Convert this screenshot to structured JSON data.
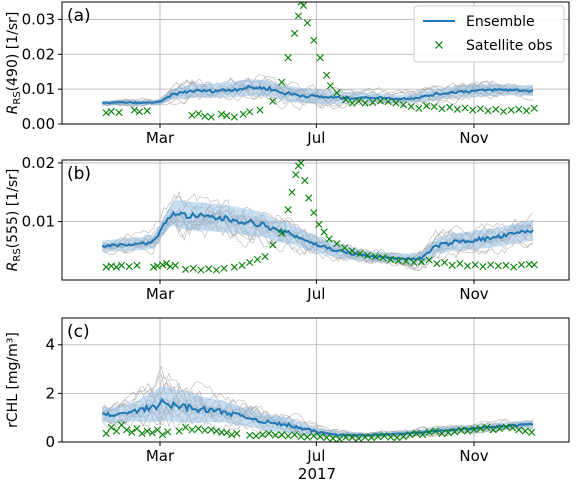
{
  "chart_data": [
    {
      "type": "line",
      "panel_label": "(a)",
      "ylabel_main": "R",
      "ylabel_sub": "RS",
      "ylabel_rest": "(490) [1/sr]",
      "ylim": [
        0,
        0.035
      ],
      "yticks": [
        0.0,
        0.01,
        0.02,
        0.03
      ],
      "ytick_labels": [
        "0.00",
        "0.01",
        "0.02",
        "0.03"
      ],
      "xtick_labels": [
        "Mar",
        "Jul",
        "Nov"
      ],
      "grid": true,
      "legend": "top-right",
      "ensemble_mean": [
        [
          15,
          0.006
        ],
        [
          30,
          0.0062
        ],
        [
          45,
          0.006
        ],
        [
          60,
          0.0063
        ],
        [
          70,
          0.0085
        ],
        [
          85,
          0.0095
        ],
        [
          100,
          0.0095
        ],
        [
          115,
          0.0098
        ],
        [
          130,
          0.0105
        ],
        [
          145,
          0.0102
        ],
        [
          155,
          0.009
        ],
        [
          170,
          0.0082
        ],
        [
          185,
          0.0078
        ],
        [
          200,
          0.0075
        ],
        [
          215,
          0.0075
        ],
        [
          230,
          0.0076
        ],
        [
          245,
          0.0072
        ],
        [
          260,
          0.0075
        ],
        [
          275,
          0.0085
        ],
        [
          290,
          0.0092
        ],
        [
          305,
          0.0095
        ],
        [
          320,
          0.0098
        ],
        [
          335,
          0.0098
        ],
        [
          350,
          0.0095
        ]
      ],
      "ensemble_spread": [
        [
          15,
          0.0008
        ],
        [
          60,
          0.001
        ],
        [
          75,
          0.0022
        ],
        [
          100,
          0.0025
        ],
        [
          130,
          0.003
        ],
        [
          160,
          0.0028
        ],
        [
          190,
          0.0025
        ],
        [
          220,
          0.0015
        ],
        [
          250,
          0.0015
        ],
        [
          280,
          0.002
        ],
        [
          310,
          0.0022
        ],
        [
          350,
          0.0018
        ]
      ],
      "satellite_obs": [
        [
          18,
          0.0032
        ],
        [
          22,
          0.0036
        ],
        [
          28,
          0.0033
        ],
        [
          40,
          0.004
        ],
        [
          44,
          0.0035
        ],
        [
          50,
          0.0038
        ],
        [
          85,
          0.0025
        ],
        [
          90,
          0.003
        ],
        [
          95,
          0.0022
        ],
        [
          100,
          0.002
        ],
        [
          108,
          0.0028
        ],
        [
          112,
          0.0024
        ],
        [
          118,
          0.002
        ],
        [
          125,
          0.0028
        ],
        [
          130,
          0.0035
        ],
        [
          138,
          0.004
        ],
        [
          148,
          0.0065
        ],
        [
          155,
          0.012
        ],
        [
          160,
          0.019
        ],
        [
          165,
          0.026
        ],
        [
          168,
          0.031
        ],
        [
          170,
          0.035
        ],
        [
          172,
          0.034
        ],
        [
          175,
          0.029
        ],
        [
          180,
          0.024
        ],
        [
          185,
          0.019
        ],
        [
          190,
          0.014
        ],
        [
          193,
          0.011
        ],
        [
          198,
          0.009
        ],
        [
          205,
          0.007
        ],
        [
          210,
          0.006
        ],
        [
          215,
          0.0065
        ],
        [
          220,
          0.006
        ],
        [
          226,
          0.0062
        ],
        [
          232,
          0.0066
        ],
        [
          238,
          0.0064
        ],
        [
          244,
          0.006
        ],
        [
          250,
          0.0055
        ],
        [
          256,
          0.005
        ],
        [
          262,
          0.0045
        ],
        [
          268,
          0.0052
        ],
        [
          274,
          0.005
        ],
        [
          280,
          0.0044
        ],
        [
          286,
          0.0048
        ],
        [
          292,
          0.0042
        ],
        [
          298,
          0.0046
        ],
        [
          304,
          0.004
        ],
        [
          310,
          0.0044
        ],
        [
          316,
          0.0038
        ],
        [
          322,
          0.0042
        ],
        [
          328,
          0.0036
        ],
        [
          334,
          0.004
        ],
        [
          340,
          0.0042
        ],
        [
          346,
          0.0038
        ],
        [
          352,
          0.0045
        ]
      ]
    },
    {
      "type": "line",
      "panel_label": "(b)",
      "ylabel_main": "R",
      "ylabel_sub": "RS",
      "ylabel_rest": "(555) [1/sr]",
      "ylim": [
        0,
        0.0205
      ],
      "yticks": [
        0.01,
        0.02
      ],
      "ytick_labels": [
        "0.01",
        "0.02"
      ],
      "xtick_labels": [
        "Mar",
        "Jul",
        "Nov"
      ],
      "grid": true,
      "ensemble_mean": [
        [
          15,
          0.0058
        ],
        [
          30,
          0.006
        ],
        [
          45,
          0.0062
        ],
        [
          55,
          0.0065
        ],
        [
          62,
          0.009
        ],
        [
          70,
          0.0115
        ],
        [
          80,
          0.011
        ],
        [
          95,
          0.0108
        ],
        [
          110,
          0.0105
        ],
        [
          125,
          0.01
        ],
        [
          140,
          0.0095
        ],
        [
          150,
          0.0085
        ],
        [
          160,
          0.008
        ],
        [
          170,
          0.0072
        ],
        [
          180,
          0.0062
        ],
        [
          195,
          0.0052
        ],
        [
          210,
          0.0045
        ],
        [
          225,
          0.004
        ],
        [
          240,
          0.0038
        ],
        [
          255,
          0.0036
        ],
        [
          265,
          0.0038
        ],
        [
          275,
          0.0058
        ],
        [
          290,
          0.0065
        ],
        [
          305,
          0.0068
        ],
        [
          320,
          0.0072
        ],
        [
          335,
          0.0078
        ],
        [
          350,
          0.0085
        ]
      ],
      "ensemble_spread": [
        [
          15,
          0.0012
        ],
        [
          60,
          0.0015
        ],
        [
          75,
          0.003
        ],
        [
          100,
          0.003
        ],
        [
          130,
          0.0028
        ],
        [
          160,
          0.0022
        ],
        [
          190,
          0.0016
        ],
        [
          220,
          0.0012
        ],
        [
          250,
          0.001
        ],
        [
          280,
          0.0018
        ],
        [
          310,
          0.002
        ],
        [
          350,
          0.0022
        ]
      ],
      "satellite_obs": [
        [
          18,
          0.0022
        ],
        [
          22,
          0.0024
        ],
        [
          26,
          0.0022
        ],
        [
          30,
          0.0025
        ],
        [
          36,
          0.0023
        ],
        [
          42,
          0.0025
        ],
        [
          55,
          0.0022
        ],
        [
          58,
          0.0024
        ],
        [
          62,
          0.0026
        ],
        [
          65,
          0.0028
        ],
        [
          68,
          0.0023
        ],
        [
          72,
          0.0025
        ],
        [
          80,
          0.0018
        ],
        [
          86,
          0.002
        ],
        [
          92,
          0.0017
        ],
        [
          98,
          0.0019
        ],
        [
          104,
          0.0017
        ],
        [
          110,
          0.002
        ],
        [
          118,
          0.0022
        ],
        [
          124,
          0.0025
        ],
        [
          130,
          0.003
        ],
        [
          136,
          0.0035
        ],
        [
          142,
          0.004
        ],
        [
          148,
          0.006
        ],
        [
          155,
          0.008
        ],
        [
          160,
          0.012
        ],
        [
          163,
          0.015
        ],
        [
          166,
          0.018
        ],
        [
          168,
          0.0195
        ],
        [
          170,
          0.02
        ],
        [
          173,
          0.017
        ],
        [
          176,
          0.014
        ],
        [
          180,
          0.0115
        ],
        [
          184,
          0.0095
        ],
        [
          188,
          0.0082
        ],
        [
          192,
          0.007
        ],
        [
          198,
          0.0062
        ],
        [
          204,
          0.0055
        ],
        [
          210,
          0.005
        ],
        [
          216,
          0.0045
        ],
        [
          222,
          0.0042
        ],
        [
          228,
          0.004
        ],
        [
          234,
          0.0038
        ],
        [
          240,
          0.0035
        ],
        [
          246,
          0.0033
        ],
        [
          252,
          0.0032
        ],
        [
          258,
          0.003
        ],
        [
          264,
          0.0031
        ],
        [
          270,
          0.0034
        ],
        [
          276,
          0.0028
        ],
        [
          282,
          0.003
        ],
        [
          288,
          0.0025
        ],
        [
          294,
          0.0028
        ],
        [
          300,
          0.0024
        ],
        [
          306,
          0.0026
        ],
        [
          312,
          0.0023
        ],
        [
          318,
          0.0026
        ],
        [
          324,
          0.0024
        ],
        [
          330,
          0.0025
        ],
        [
          336,
          0.0022
        ],
        [
          342,
          0.0026
        ],
        [
          348,
          0.0027
        ],
        [
          352,
          0.0026
        ]
      ]
    },
    {
      "type": "line",
      "panel_label": "(c)",
      "ylabel_main": "rCHL [mg/m³]",
      "ylim": [
        0,
        5.1
      ],
      "yticks": [
        0,
        2,
        4
      ],
      "ytick_labels": [
        "0",
        "2",
        "4"
      ],
      "xtick_labels": [
        "Mar",
        "Jul",
        "Nov"
      ],
      "xlabel": "2017",
      "grid": true,
      "ensemble_mean": [
        [
          15,
          1.15
        ],
        [
          25,
          1.1
        ],
        [
          35,
          1.2
        ],
        [
          45,
          1.3
        ],
        [
          55,
          1.45
        ],
        [
          62,
          1.6
        ],
        [
          70,
          1.5
        ],
        [
          80,
          1.45
        ],
        [
          90,
          1.35
        ],
        [
          100,
          1.3
        ],
        [
          110,
          1.25
        ],
        [
          120,
          1.1
        ],
        [
          130,
          1.0
        ],
        [
          140,
          0.85
        ],
        [
          150,
          0.75
        ],
        [
          160,
          0.7
        ],
        [
          170,
          0.55
        ],
        [
          180,
          0.45
        ],
        [
          190,
          0.35
        ],
        [
          200,
          0.3
        ],
        [
          210,
          0.3
        ],
        [
          220,
          0.28
        ],
        [
          230,
          0.3
        ],
        [
          240,
          0.32
        ],
        [
          250,
          0.35
        ],
        [
          260,
          0.38
        ],
        [
          270,
          0.42
        ],
        [
          280,
          0.48
        ],
        [
          290,
          0.52
        ],
        [
          300,
          0.55
        ],
        [
          310,
          0.58
        ],
        [
          320,
          0.62
        ],
        [
          330,
          0.65
        ],
        [
          340,
          0.7
        ],
        [
          350,
          0.72
        ]
      ],
      "ensemble_spread": [
        [
          15,
          0.35
        ],
        [
          40,
          0.5
        ],
        [
          60,
          0.9
        ],
        [
          80,
          0.8
        ],
        [
          100,
          0.6
        ],
        [
          130,
          0.45
        ],
        [
          160,
          0.4
        ],
        [
          190,
          0.2
        ],
        [
          220,
          0.12
        ],
        [
          260,
          0.15
        ],
        [
          300,
          0.18
        ],
        [
          330,
          0.2
        ],
        [
          350,
          0.2
        ]
      ],
      "satellite_obs": [
        [
          18,
          0.35
        ],
        [
          22,
          0.6
        ],
        [
          26,
          0.45
        ],
        [
          30,
          0.7
        ],
        [
          34,
          0.5
        ],
        [
          38,
          0.4
        ],
        [
          42,
          0.55
        ],
        [
          46,
          0.35
        ],
        [
          50,
          0.45
        ],
        [
          54,
          0.38
        ],
        [
          58,
          0.5
        ],
        [
          62,
          0.3
        ],
        [
          66,
          0.42
        ],
        [
          75,
          0.45
        ],
        [
          80,
          0.6
        ],
        [
          85,
          0.5
        ],
        [
          90,
          0.55
        ],
        [
          95,
          0.48
        ],
        [
          100,
          0.5
        ],
        [
          104,
          0.45
        ],
        [
          108,
          0.4
        ],
        [
          112,
          0.38
        ],
        [
          116,
          0.3
        ],
        [
          120,
          0.35
        ],
        [
          130,
          0.28
        ],
        [
          135,
          0.25
        ],
        [
          140,
          0.3
        ],
        [
          145,
          0.35
        ],
        [
          150,
          0.28
        ],
        [
          155,
          0.3
        ],
        [
          160,
          0.25
        ],
        [
          165,
          0.3
        ],
        [
          170,
          0.22
        ],
        [
          175,
          0.2
        ],
        [
          180,
          0.25
        ],
        [
          185,
          0.22
        ],
        [
          190,
          0.18
        ],
        [
          195,
          0.15
        ],
        [
          200,
          0.12
        ],
        [
          205,
          0.2
        ],
        [
          210,
          0.18
        ],
        [
          215,
          0.15
        ],
        [
          220,
          0.2
        ],
        [
          225,
          0.18
        ],
        [
          230,
          0.22
        ],
        [
          235,
          0.25
        ],
        [
          240,
          0.2
        ],
        [
          245,
          0.18
        ],
        [
          250,
          0.22
        ],
        [
          255,
          0.3
        ],
        [
          260,
          0.35
        ],
        [
          265,
          0.3
        ],
        [
          270,
          0.4
        ],
        [
          275,
          0.45
        ],
        [
          280,
          0.35
        ],
        [
          285,
          0.38
        ],
        [
          290,
          0.42
        ],
        [
          295,
          0.48
        ],
        [
          300,
          0.45
        ],
        [
          305,
          0.5
        ],
        [
          310,
          0.55
        ],
        [
          315,
          0.6
        ],
        [
          320,
          0.5
        ],
        [
          325,
          0.55
        ],
        [
          330,
          0.62
        ],
        [
          335,
          0.58
        ],
        [
          340,
          0.5
        ],
        [
          345,
          0.45
        ],
        [
          350,
          0.4
        ]
      ]
    }
  ],
  "legend": {
    "ensemble_label": "Ensemble",
    "obs_label": "Satellite obs"
  },
  "colors": {
    "ensemble_line": "#1f77b4",
    "ensemble_band": "#9cc3e4",
    "members": "#9a9a9a",
    "obs": "#008000",
    "grid": "#b0b0b0"
  }
}
